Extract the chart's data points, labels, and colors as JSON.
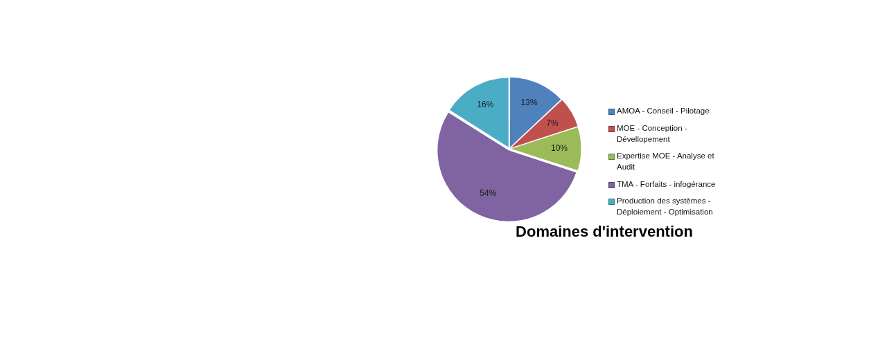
{
  "chart_data": {
    "type": "pie",
    "title": "Domaines d'intervention",
    "categories": [
      "AMOA - Conseil - Pilotage",
      "MOE - Conception - Dévellopement",
      "Expertise MOE - Analyse et Audit",
      "TMA - Forfaits - infogérance",
      "Production des systèmes - Déploiement - Optimisation"
    ],
    "values": [
      13,
      7,
      10,
      54,
      16
    ],
    "colors": [
      "#4f81bd",
      "#c0504d",
      "#9bbb59",
      "#8064a2",
      "#4bacc6"
    ],
    "value_labels": [
      "13%",
      "7%",
      "10%",
      "54%",
      "16%"
    ],
    "legend": "right"
  }
}
